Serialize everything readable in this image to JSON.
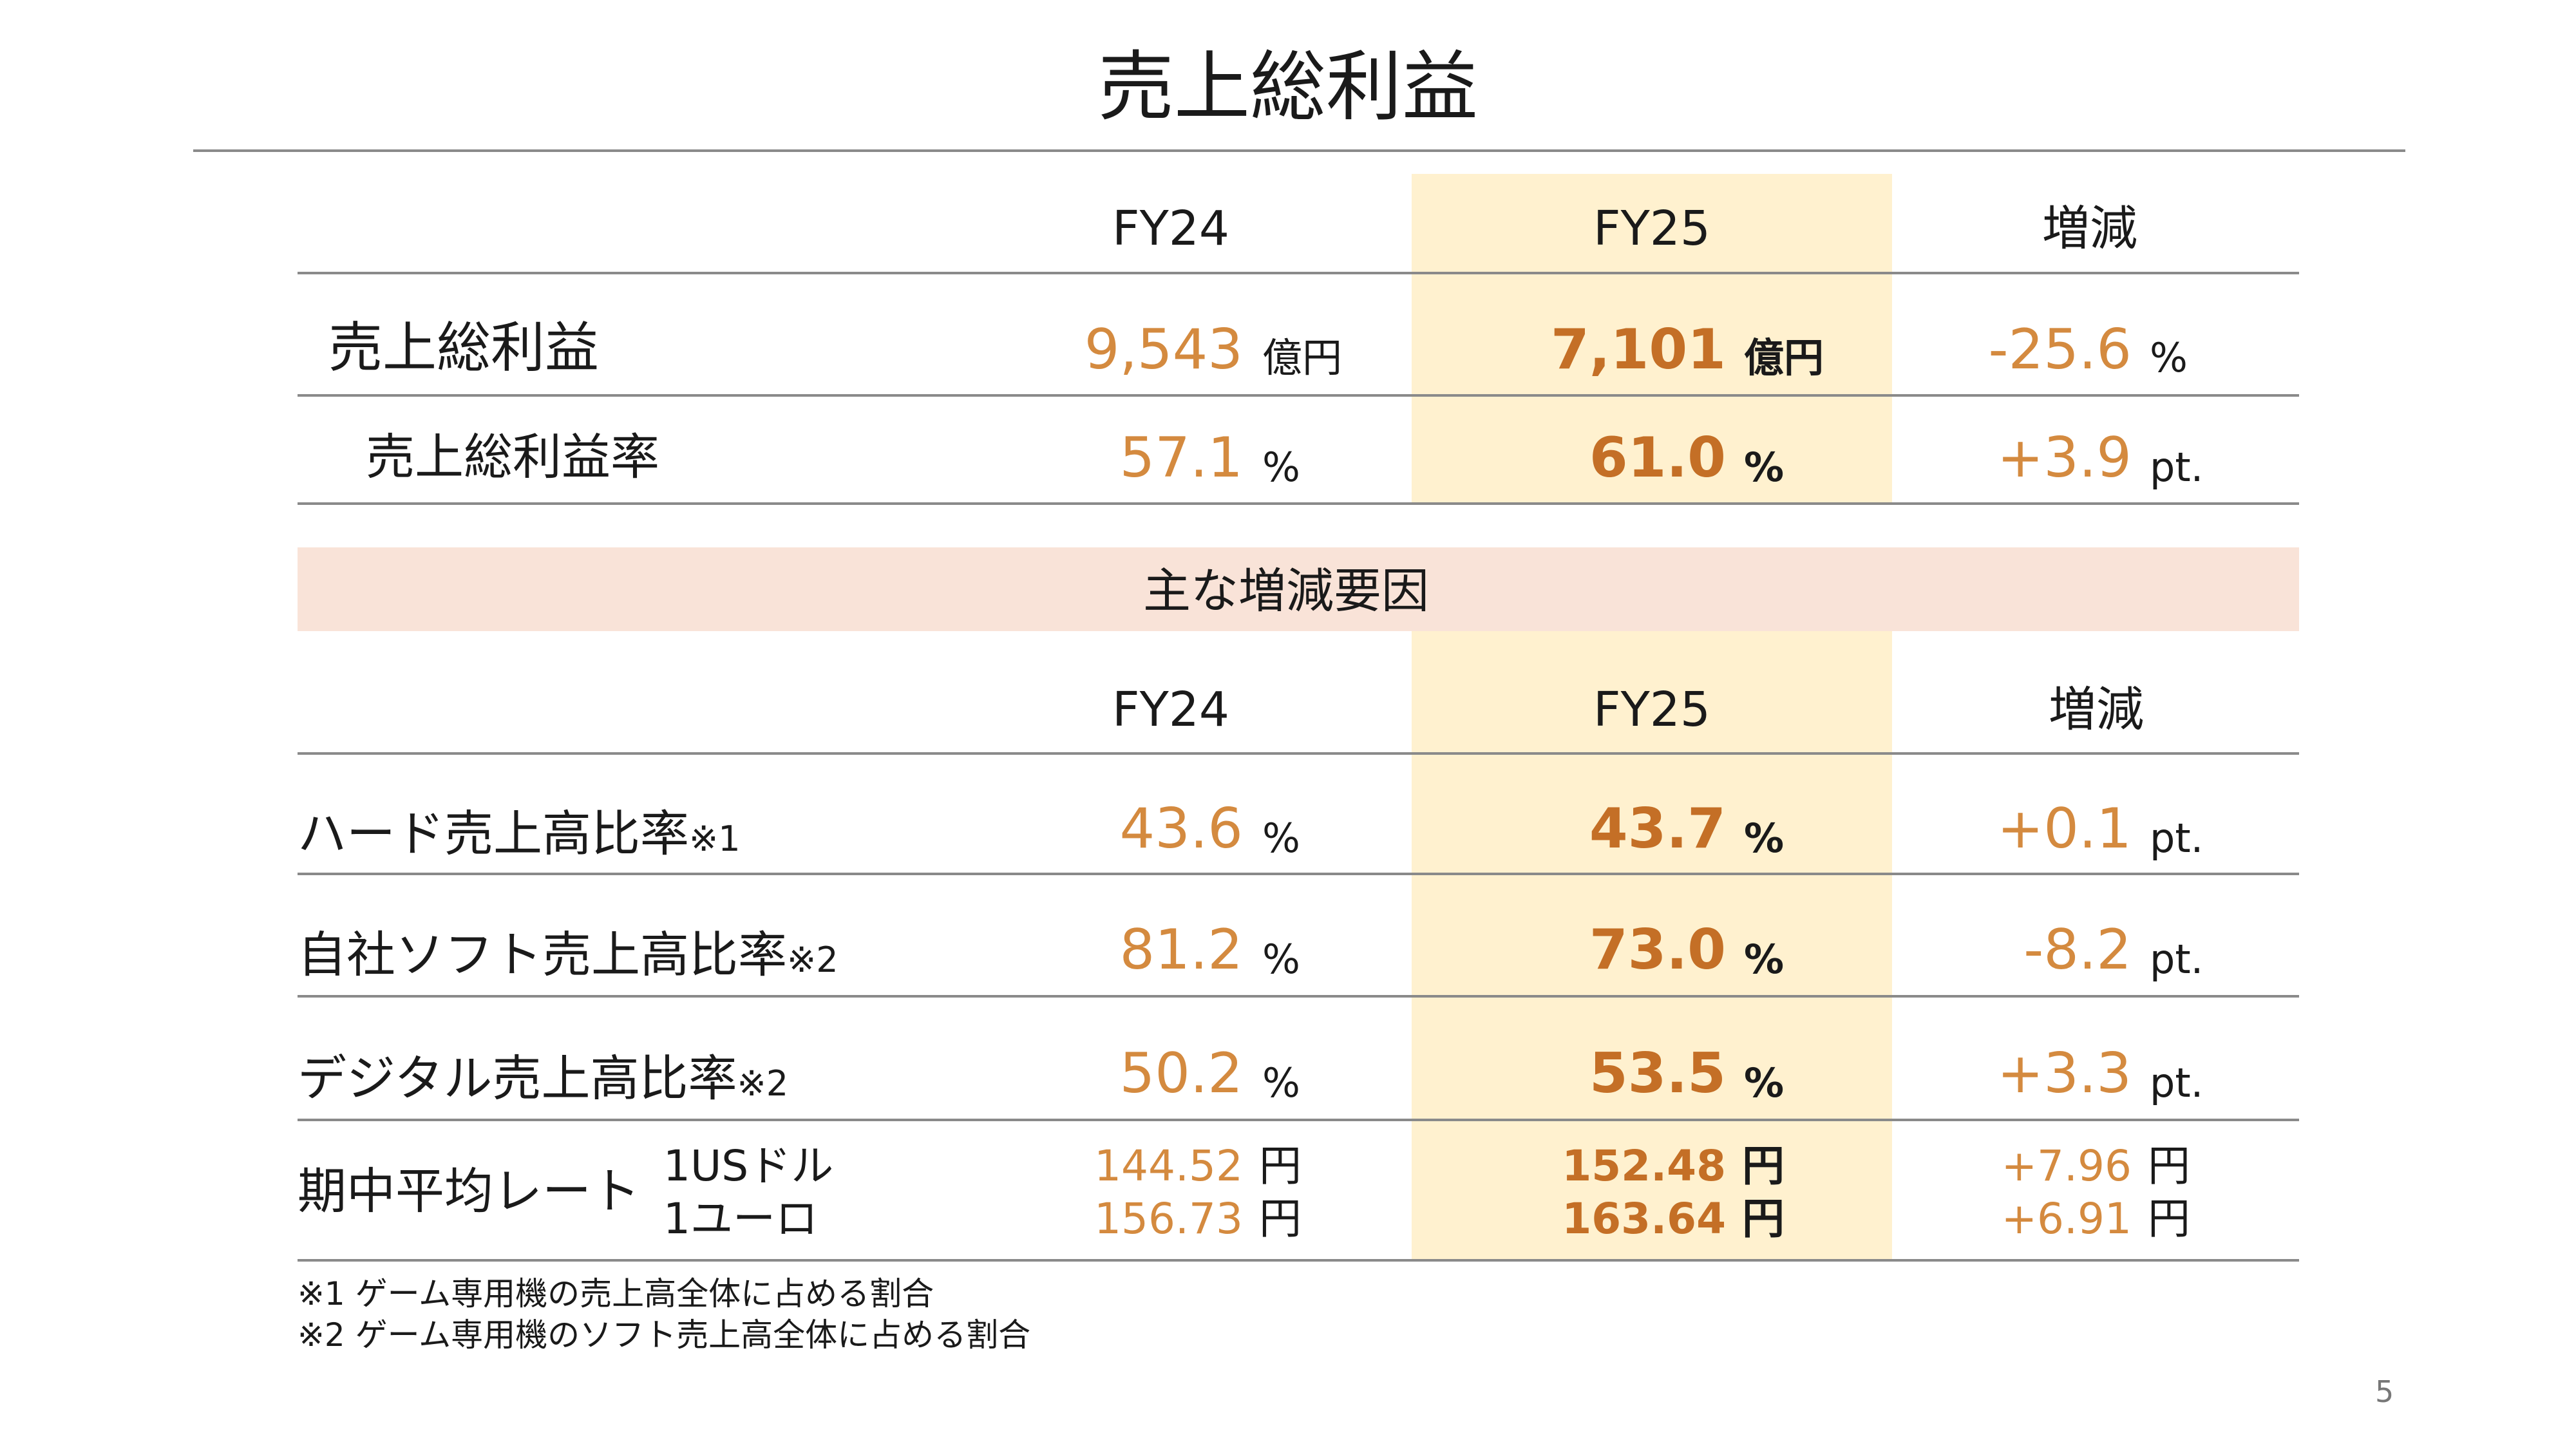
{
  "title": "売上総利益",
  "top_table": {
    "headers": [
      "FY24",
      "FY25",
      "増減"
    ],
    "rows": [
      {
        "label": "売上総利益",
        "fy24": "9,543",
        "fy24_unit": "億円",
        "fy25": "7,101",
        "fy25_unit": "億円",
        "change": "-25.6",
        "change_unit": "%"
      },
      {
        "label": "売上総利益率",
        "fy24": "57.1",
        "fy24_unit": "%",
        "fy25": "61.0",
        "fy25_unit": "%",
        "change": "+3.9",
        "change_unit": "pt."
      }
    ]
  },
  "factors_title": "主な増減要因",
  "factors_table": {
    "headers": [
      "FY24",
      "FY25",
      "増減"
    ],
    "rows": [
      {
        "label": "ハード売上高比率",
        "note": "※1",
        "fy24": "43.6",
        "fy24_unit": "%",
        "fy25": "43.7",
        "fy25_unit": "%",
        "change": "+0.1",
        "change_unit": "pt."
      },
      {
        "label": "自社ソフト売上高比率",
        "note": "※2",
        "fy24": "81.2",
        "fy24_unit": "%",
        "fy25": "73.0",
        "fy25_unit": "%",
        "change": "-8.2",
        "change_unit": "pt."
      },
      {
        "label": "デジタル売上高比率",
        "note": "※2",
        "fy24": "50.2",
        "fy24_unit": "%",
        "fy25": "53.5",
        "fy25_unit": "%",
        "change": "+3.3",
        "change_unit": "pt."
      }
    ],
    "rate": {
      "label": "期中平均レート",
      "sub": [
        {
          "label": "1USドル",
          "fy24": "144.52",
          "fy25": "152.48",
          "change": "+7.96",
          "unit": "円"
        },
        {
          "label": "1ユーロ",
          "fy24": "156.73",
          "fy25": "163.64",
          "change": "+6.91",
          "unit": "円"
        }
      ]
    }
  },
  "footnotes": [
    "※1 ゲーム専用機の売上高全体に占める割合",
    "※2 ゲーム専用機のソフト売上高全体に占める割合"
  ],
  "page_number": "5",
  "colors": {
    "value": "#d48a3f",
    "value_bold": "#c46f26",
    "highlight": "#fff1cf",
    "band": "#f9e3d8",
    "rule": "#8a8a8a"
  }
}
